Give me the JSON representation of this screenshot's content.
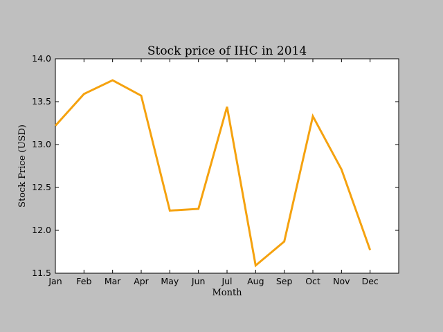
{
  "chart_data": {
    "type": "line",
    "title": "Stock price of IHC in 2014",
    "xlabel": "Month",
    "ylabel": "Stock Price (USD)",
    "categories": [
      "Jan",
      "Feb",
      "Mar",
      "Apr",
      "May",
      "Jun",
      "Jul",
      "Aug",
      "Sep",
      "Oct",
      "Nov",
      "Dec"
    ],
    "series": [
      {
        "color": "#f5a20f",
        "values": [
          13.22,
          13.59,
          13.75,
          13.57,
          12.23,
          12.25,
          13.44,
          11.59,
          11.87,
          13.33,
          12.71,
          11.77
        ]
      }
    ],
    "ylim": [
      11.5,
      14.0
    ],
    "yticks": [
      "11.5",
      "12.0",
      "12.5",
      "13.0",
      "13.5",
      "14.0"
    ],
    "x_axis_extent_categories": 12,
    "grid": false,
    "background_color": "#bfbfbf",
    "plot_background_color": "#ffffff"
  }
}
